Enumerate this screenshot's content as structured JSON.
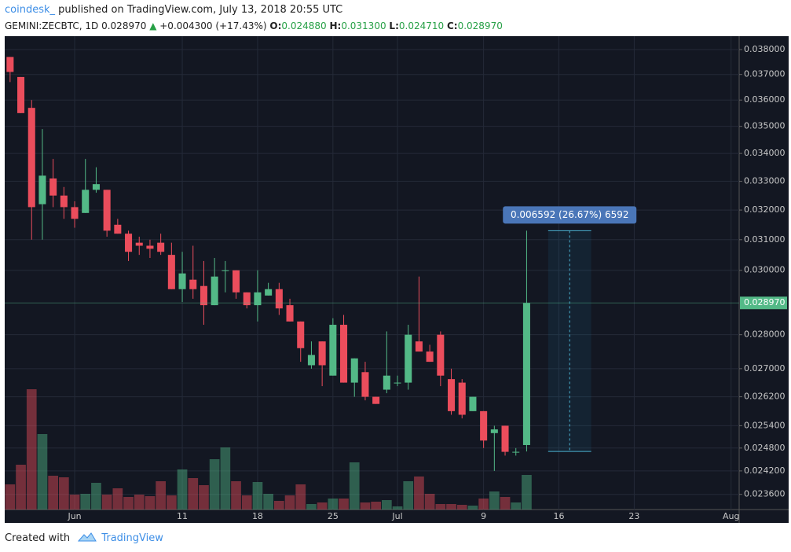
{
  "header": {
    "publisher": "coindesk_",
    "published": "published on TradingView.com, July 13, 2018 20:55 UTC",
    "symbol": "GEMINI:ZECBTC, 1D",
    "price": "0.028970",
    "arrow": "▲",
    "change": "+0.004300 (+17.43%)",
    "o_label": "O:",
    "o": "0.024880",
    "h_label": "H:",
    "h": "0.031300",
    "l_label": "L:",
    "l": "0.024710",
    "c_label": "C:",
    "c": "0.028970"
  },
  "footer": {
    "created": "Created with",
    "brand": "TradingView"
  },
  "chart_data": {
    "type": "candlestick",
    "log_scale": true,
    "grid": true,
    "up_color": "#53b987",
    "down_color": "#eb4d5c",
    "xlim": [
      "2018-05-25T12:00:00Z",
      "2018-08-01T18:00:00Z"
    ],
    "xticks": [
      {
        "value": "2018-06-01",
        "label": "Jun"
      },
      {
        "value": "2018-06-11",
        "label": "11"
      },
      {
        "value": "2018-06-18",
        "label": "18"
      },
      {
        "value": "2018-06-25",
        "label": "25"
      },
      {
        "value": "2018-07-01",
        "label": "Jul"
      },
      {
        "value": "2018-07-09",
        "label": "9"
      },
      {
        "value": "2018-07-16",
        "label": "16"
      },
      {
        "value": "2018-07-23",
        "label": "23"
      },
      {
        "value": "2018-08-01",
        "label": "Aug"
      }
    ],
    "ylim": [
      0.0232,
      0.0385
    ],
    "yticks": [
      {
        "value": 0.038,
        "label": "0.038000"
      },
      {
        "value": 0.037,
        "label": "0.037000"
      },
      {
        "value": 0.036,
        "label": "0.036000"
      },
      {
        "value": 0.035,
        "label": "0.035000"
      },
      {
        "value": 0.034,
        "label": "0.034000"
      },
      {
        "value": 0.033,
        "label": "0.033000"
      },
      {
        "value": 0.032,
        "label": "0.032000"
      },
      {
        "value": 0.031,
        "label": "0.031000"
      },
      {
        "value": 0.03,
        "label": "0.030000"
      },
      {
        "value": 0.028,
        "label": "0.028000"
      },
      {
        "value": 0.027,
        "label": "0.027000"
      },
      {
        "value": 0.0262,
        "label": "0.026200"
      },
      {
        "value": 0.0254,
        "label": "0.025400"
      },
      {
        "value": 0.0248,
        "label": "0.024800"
      },
      {
        "value": 0.0242,
        "label": "0.024200"
      },
      {
        "value": 0.0236,
        "label": "0.023600"
      }
    ],
    "current_price": {
      "value": 0.02897,
      "label": "0.028970"
    },
    "x": [
      "2018-05-26",
      "2018-05-27",
      "2018-05-28",
      "2018-05-29",
      "2018-05-30",
      "2018-05-31",
      "2018-06-01",
      "2018-06-02",
      "2018-06-03",
      "2018-06-04",
      "2018-06-05",
      "2018-06-06",
      "2018-06-07",
      "2018-06-08",
      "2018-06-09",
      "2018-06-10",
      "2018-06-11",
      "2018-06-12",
      "2018-06-13",
      "2018-06-14",
      "2018-06-15",
      "2018-06-16",
      "2018-06-17",
      "2018-06-18",
      "2018-06-19",
      "2018-06-20",
      "2018-06-21",
      "2018-06-22",
      "2018-06-23",
      "2018-06-24",
      "2018-06-25",
      "2018-06-26",
      "2018-06-27",
      "2018-06-28",
      "2018-06-29",
      "2018-06-30",
      "2018-07-01",
      "2018-07-02",
      "2018-07-03",
      "2018-07-04",
      "2018-07-05",
      "2018-07-06",
      "2018-07-07",
      "2018-07-08",
      "2018-07-09",
      "2018-07-10",
      "2018-07-11",
      "2018-07-12",
      "2018-07-13"
    ],
    "open": [
      0.0377,
      0.0369,
      0.0357,
      0.0322,
      0.0331,
      0.0325,
      0.0321,
      0.0319,
      0.0327,
      0.0327,
      0.0315,
      0.0312,
      0.0309,
      0.0308,
      0.0309,
      0.0305,
      0.0294,
      0.0297,
      0.0295,
      0.0289,
      0.03,
      0.03,
      0.0293,
      0.0289,
      0.0292,
      0.0294,
      0.0289,
      0.0284,
      0.0271,
      0.0278,
      0.0268,
      0.0283,
      0.0266,
      0.0269,
      0.0262,
      0.0264,
      0.0266,
      0.0266,
      0.0278,
      0.0275,
      0.028,
      0.0267,
      0.0266,
      0.0258,
      0.0258,
      0.0252,
      0.0254,
      0.0247,
      0.02488
    ],
    "high": [
      0.0377,
      0.0369,
      0.036,
      0.0349,
      0.0338,
      0.0328,
      0.0323,
      0.0338,
      0.0335,
      0.0327,
      0.0317,
      0.0313,
      0.0311,
      0.031,
      0.0312,
      0.0309,
      0.0306,
      0.0308,
      0.0303,
      0.0304,
      0.0303,
      0.03,
      0.0293,
      0.03,
      0.0296,
      0.0296,
      0.0291,
      0.0284,
      0.0278,
      0.0278,
      0.0285,
      0.0286,
      0.0273,
      0.0272,
      0.0262,
      0.0281,
      0.0268,
      0.0283,
      0.0298,
      0.0277,
      0.0281,
      0.027,
      0.0267,
      0.0262,
      0.0258,
      0.0254,
      0.0254,
      0.0248,
      0.0313
    ],
    "low": [
      0.0367,
      0.0355,
      0.031,
      0.031,
      0.0321,
      0.0317,
      0.0314,
      0.0319,
      0.0326,
      0.0311,
      0.0312,
      0.0303,
      0.0305,
      0.0304,
      0.0305,
      0.0294,
      0.029,
      0.0291,
      0.0283,
      0.0289,
      0.0293,
      0.0291,
      0.0288,
      0.0284,
      0.0292,
      0.0286,
      0.0284,
      0.0272,
      0.027,
      0.0265,
      0.0268,
      0.0266,
      0.0262,
      0.0261,
      0.026,
      0.0263,
      0.0265,
      0.0264,
      0.0275,
      0.0272,
      0.0265,
      0.0257,
      0.0256,
      0.0258,
      0.0248,
      0.0242,
      0.0246,
      0.0246,
      0.02471
    ],
    "close": [
      0.0371,
      0.0355,
      0.0321,
      0.0332,
      0.0325,
      0.0321,
      0.0317,
      0.0327,
      0.0329,
      0.0313,
      0.0312,
      0.0306,
      0.0308,
      0.0307,
      0.0306,
      0.0294,
      0.0299,
      0.0294,
      0.0289,
      0.0298,
      0.03,
      0.0293,
      0.0289,
      0.0293,
      0.0294,
      0.0288,
      0.0284,
      0.0276,
      0.0274,
      0.0271,
      0.0283,
      0.0266,
      0.0273,
      0.0262,
      0.026,
      0.0268,
      0.0266,
      0.028,
      0.0275,
      0.0272,
      0.0268,
      0.0258,
      0.0257,
      0.0262,
      0.025,
      0.0253,
      0.0247,
      0.0247,
      0.02897
    ],
    "volume": [
      32,
      57,
      153,
      96,
      43,
      41,
      19,
      20,
      34,
      19,
      27,
      16,
      19,
      17,
      36,
      18,
      51,
      40,
      31,
      64,
      79,
      36,
      18,
      35,
      20,
      11,
      18,
      32,
      7,
      9,
      14,
      14,
      60,
      9,
      10,
      12,
      4,
      36,
      42,
      20,
      7,
      7,
      6,
      5,
      14,
      23,
      16,
      9,
      44
    ],
    "annotation": {
      "text": "0.006592 (26.67%) 6592",
      "from": 0.02471,
      "to": 0.0313,
      "x": [
        "2018-07-15",
        "2018-07-19"
      ]
    }
  }
}
